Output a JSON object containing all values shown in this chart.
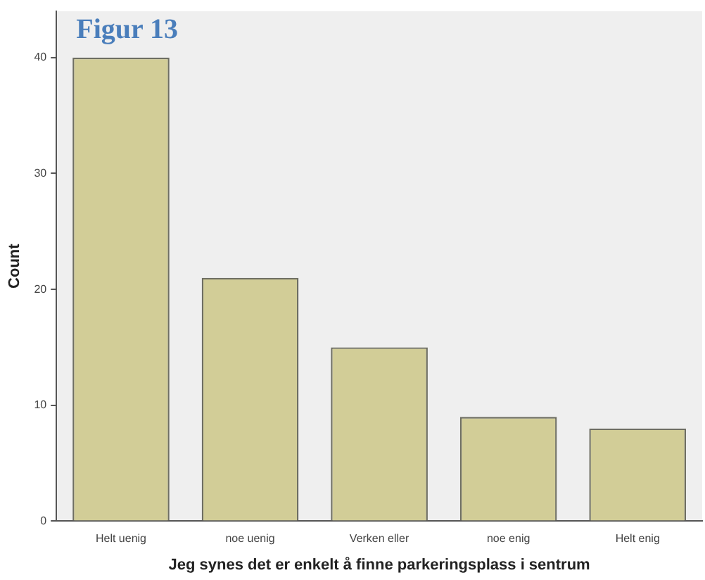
{
  "chart_data": {
    "type": "bar",
    "title": "Figur 13",
    "xlabel": "Jeg synes det er enkelt å finne parkeringsplass i sentrum",
    "ylabel": "Count",
    "categories": [
      "Helt uenig",
      "noe uenig",
      "Verken eller",
      "noe enig",
      "Helt enig"
    ],
    "values": [
      40,
      21,
      15,
      9,
      8
    ],
    "color": "#d2cd97",
    "ylim": [
      0,
      44
    ],
    "yticks": [
      0,
      10,
      20,
      30,
      40
    ],
    "grid": false,
    "legend": false
  }
}
